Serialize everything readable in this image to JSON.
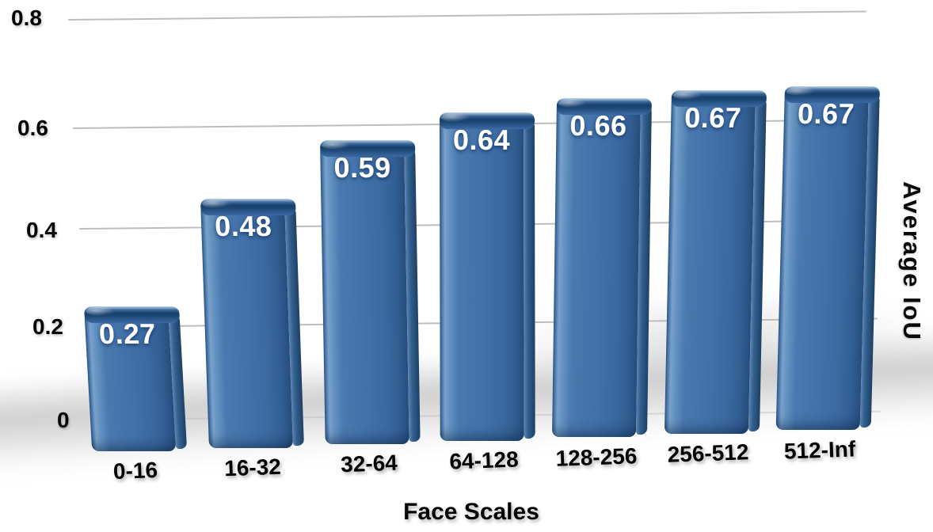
{
  "chart_data": {
    "type": "bar",
    "title": "",
    "xlabel": "Face Scales",
    "ylabel": "Average IoU",
    "categories": [
      "0-16",
      "16-32",
      "32-64",
      "64-128",
      "128-256",
      "256-512",
      "512-Inf"
    ],
    "values": [
      0.27,
      0.48,
      0.59,
      0.64,
      0.66,
      0.67,
      0.67
    ],
    "value_labels": [
      "0.27",
      "0.48",
      "0.59",
      "0.64",
      "0.66",
      "0.67",
      "0.67"
    ],
    "y_ticks": [
      "0.8",
      "0.6",
      "0.4",
      "0.2",
      "0"
    ],
    "ylim": [
      0,
      0.8
    ],
    "grid": true,
    "legend_position": "none",
    "style_3d": true,
    "colors": {
      "bar_front": "#4171a9",
      "bar_highlight": "#7ba3cd",
      "bar_top": "#1c4674",
      "bar_side": "#2b5280",
      "value_label": "#ffffff",
      "axis_text": "#040404",
      "gridline": "#bdbdbd",
      "background": "#ffffff"
    }
  }
}
